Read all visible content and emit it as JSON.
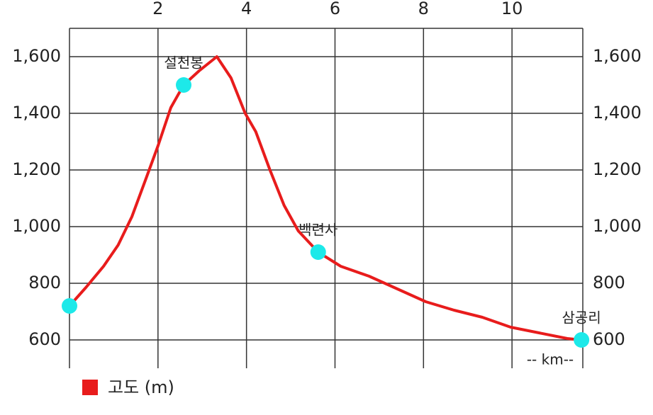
{
  "chart_data": {
    "type": "line",
    "x_label": "-- km--",
    "x": [
      0,
      0.37,
      0.77,
      1.1,
      1.41,
      1.73,
      2.0,
      2.29,
      2.58,
      2.93,
      3.33,
      3.65,
      3.97,
      4.21,
      4.53,
      4.85,
      5.17,
      5.62,
      6.13,
      6.77,
      7.41,
      8.05,
      8.69,
      9.33,
      9.97,
      10.61,
      11.25,
      11.57
    ],
    "series": [
      {
        "name": "고도 (m)",
        "color": "#e81c1c",
        "values": [
          720,
          785,
          860,
          935,
          1035,
          1170,
          1285,
          1420,
          1500,
          1550,
          1600,
          1525,
          1400,
          1335,
          1200,
          1075,
          985,
          910,
          860,
          825,
          780,
          735,
          705,
          680,
          645,
          625,
          605,
          600
        ]
      }
    ],
    "waypoints": {
      "color": "#1de9e9",
      "names": [
        null,
        "설천봉",
        "백련사",
        "삼공리"
      ],
      "x": [
        0,
        2.58,
        5.62,
        11.57
      ],
      "values": [
        720,
        1500,
        910,
        600
      ]
    },
    "xlim": [
      0,
      11.6
    ],
    "xticks": [
      2,
      4,
      6,
      8,
      10
    ],
    "ylim": [
      500,
      1700
    ],
    "yticks": [
      600,
      800,
      {
        "value": 1000,
        "label": "1,000"
      },
      {
        "value": 1200,
        "label": "1,200"
      },
      {
        "value": 1400,
        "label": "1,400"
      },
      {
        "value": 1600,
        "label": "1,600"
      }
    ],
    "y2lim": [
      500,
      1700
    ],
    "y2ticks": [
      600,
      800,
      {
        "value": 1000,
        "label": "1,000"
      },
      {
        "value": 1200,
        "label": "1,200"
      },
      {
        "value": 1400,
        "label": "1,400"
      },
      {
        "value": 1600,
        "label": "1,600"
      }
    ],
    "grid": true
  }
}
